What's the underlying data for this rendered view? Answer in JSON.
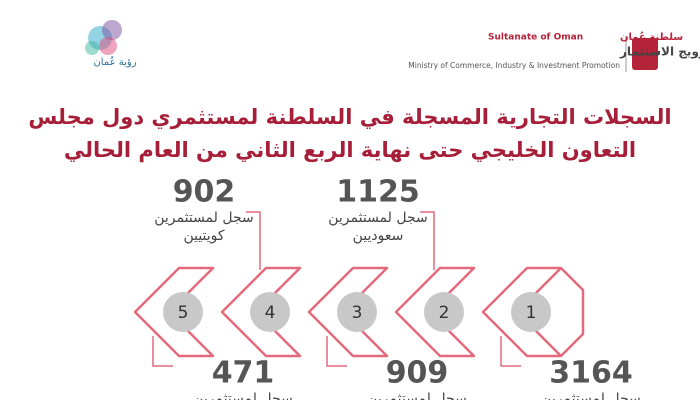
{
  "header": {
    "ministry_en_top": "Sultanate of Oman",
    "ministry_ar_top": "سلطنة عُمان",
    "ministry_ar": "وزارة التجارة والصناعة وترويج الاستثمار",
    "ministry_en": "Ministry of Commerce, Industry & Investment Promotion",
    "vision": "رؤية عُمان"
  },
  "title": {
    "line1": "السجلات التجارية المسجلة في السلطنة لمستثمري دول مجلس",
    "line2": "التعاون الخليجي حتى نهاية الربع الثاني من العام الحالي"
  },
  "items": [
    {
      "step": 1,
      "value": 3164,
      "label1": "سجل لمستثمرين"
    },
    {
      "step": 2,
      "value": 1125,
      "label1": "سجل لمستثمرين",
      "label2": "سعوديين"
    },
    {
      "step": 3,
      "value": 909,
      "label1": "سجل لمستثمرين"
    },
    {
      "step": 4,
      "value": 902,
      "label1": "سجل لمستثمرين",
      "label2": "كويتيين"
    },
    {
      "step": 5,
      "value": 471,
      "label1": "سجل لمستثمرين"
    }
  ]
}
